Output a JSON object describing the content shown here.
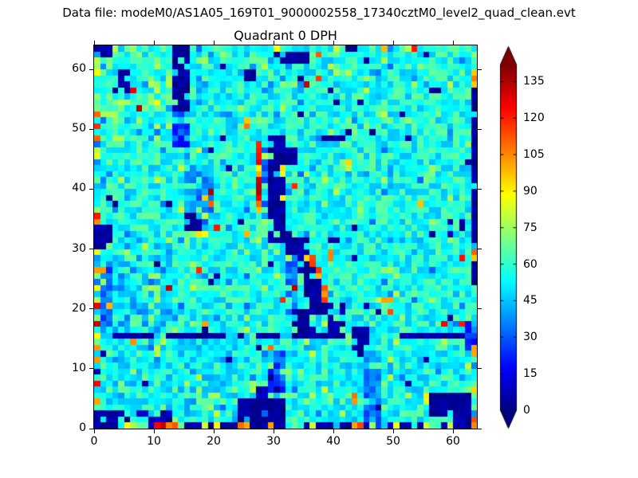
{
  "figure": {
    "background": "#ffffff"
  },
  "header": {
    "text": "Data file: modeM0/AS1A05_169T01_9000002558_17340cztM0_level2_quad_clean.evt"
  },
  "chart_data": {
    "type": "heatmap",
    "title": "Quadrant 0 DPH",
    "grid": {
      "nx": 64,
      "ny": 64
    },
    "xlim": [
      0,
      64
    ],
    "ylim": [
      0,
      64
    ],
    "x_ticks": [
      0,
      10,
      20,
      30,
      40,
      50,
      60
    ],
    "y_ticks": [
      0,
      10,
      20,
      30,
      40,
      50,
      60
    ],
    "colormap": "jet",
    "vmin": 0,
    "vmax": 142,
    "colorbar": {
      "ticks": [
        0,
        15,
        30,
        45,
        60,
        75,
        90,
        105,
        120,
        135
      ],
      "extend": "both",
      "over_color": "#800000",
      "under_color": "#000080"
    },
    "seed": 1371,
    "background": {
      "lo": 44,
      "hi": 68
    },
    "scatter": [
      {
        "prob": 0.013,
        "v": [
          0,
          7
        ]
      },
      {
        "prob": 0.009,
        "v": [
          80,
          138
        ]
      },
      {
        "prob": 0.05,
        "v": [
          66,
          80
        ]
      },
      {
        "prob": 0.05,
        "v": [
          32,
          46
        ]
      }
    ],
    "tints": [
      {
        "x": 0,
        "y": 48,
        "w": 14,
        "h": 16,
        "v": [
          48,
          80
        ],
        "p": 0.5
      },
      {
        "x": 0,
        "y": 16,
        "w": 14,
        "h": 15,
        "v": [
          34,
          56
        ],
        "p": 0.55
      },
      {
        "x": 2,
        "y": 1,
        "w": 24,
        "h": 14,
        "v": [
          40,
          60
        ],
        "p": 0.5
      },
      {
        "x": 33,
        "y": 1,
        "w": 30,
        "h": 13,
        "v": [
          42,
          60
        ],
        "p": 0.35
      },
      {
        "x": 9,
        "y": 17,
        "w": 2,
        "h": 14,
        "v": [
          60,
          80
        ],
        "p": 0.5
      },
      {
        "x": 15,
        "y": 34,
        "w": 5,
        "h": 10,
        "v": [
          28,
          48
        ],
        "p": 0.75
      },
      {
        "x": 45,
        "y": 0,
        "w": 3,
        "h": 13,
        "v": [
          26,
          46
        ],
        "p": 0.8
      },
      {
        "x": 29,
        "y": 6,
        "w": 3,
        "h": 7,
        "v": [
          20,
          38
        ],
        "p": 0.85
      },
      {
        "x": 1,
        "y": 17,
        "w": 2,
        "h": 11,
        "v": [
          22,
          40
        ],
        "p": 0.8
      },
      {
        "x": 32,
        "y": 17,
        "w": 2,
        "h": 11,
        "v": [
          26,
          46
        ],
        "p": 0.6
      },
      {
        "x": 28,
        "y": 35,
        "w": 1,
        "h": 13,
        "v": [
          22,
          40
        ],
        "p": 0.7
      }
    ],
    "features": [
      {
        "x": 0,
        "y": 1,
        "w": 1,
        "h": 61,
        "v": [
          70,
          132
        ],
        "p": 0.42
      },
      {
        "x": 13,
        "y": 53,
        "w": 3,
        "h": 11,
        "v": [
          0,
          9
        ],
        "p": 0.8
      },
      {
        "x": 13,
        "y": 47,
        "w": 3,
        "h": 6,
        "v": [
          16,
          36
        ],
        "p": 0.7
      },
      {
        "x": 4,
        "y": 56,
        "w": 2,
        "h": 4,
        "v": [
          0,
          8
        ],
        "p": 0.8
      },
      {
        "x": 0,
        "y": 62,
        "w": 3,
        "h": 2,
        "v": [
          0,
          8
        ],
        "p": 0.9
      },
      {
        "x": 30,
        "y": 61,
        "w": 6,
        "h": 2,
        "v": [
          0,
          8
        ],
        "p": 0.9
      },
      {
        "x": 25,
        "y": 58,
        "w": 2,
        "h": 2,
        "v": [
          0,
          8
        ],
        "p": 1
      },
      {
        "x": 37,
        "y": 62,
        "w": 1,
        "h": 1,
        "v": [
          98,
          112
        ],
        "p": 1
      },
      {
        "x": 30,
        "y": 63,
        "w": 1,
        "h": 1,
        "v": [
          80,
          92
        ],
        "p": 1
      },
      {
        "x": 40,
        "y": 63,
        "w": 1,
        "h": 1,
        "v": [
          80,
          92
        ],
        "p": 1
      },
      {
        "x": 48,
        "y": 63,
        "w": 1,
        "h": 1,
        "v": [
          95,
          110
        ],
        "p": 1
      },
      {
        "x": 42,
        "y": 63,
        "w": 2,
        "h": 1,
        "v": [
          0,
          7
        ],
        "p": 1
      },
      {
        "x": 45,
        "y": 61,
        "w": 1,
        "h": 1,
        "v": [
          0,
          6
        ],
        "p": 1
      },
      {
        "x": 44,
        "y": 54,
        "w": 1,
        "h": 1,
        "v": [
          0,
          6
        ],
        "p": 1
      },
      {
        "x": 51,
        "y": 52,
        "w": 1,
        "h": 1,
        "v": [
          0,
          6
        ],
        "p": 1
      },
      {
        "x": 56,
        "y": 56,
        "w": 2,
        "h": 1,
        "v": [
          0,
          6
        ],
        "p": 1
      },
      {
        "x": 34,
        "y": 52,
        "w": 1,
        "h": 1,
        "v": [
          0,
          6
        ],
        "p": 1
      },
      {
        "x": 38,
        "y": 48,
        "w": 4,
        "h": 1,
        "v": [
          0,
          8
        ],
        "p": 1
      },
      {
        "x": 29,
        "y": 35,
        "w": 3,
        "h": 14,
        "v": [
          0,
          9
        ],
        "p": 0.93
      },
      {
        "x": 32,
        "y": 44,
        "w": 2,
        "h": 3,
        "v": [
          0,
          9
        ],
        "p": 0.9
      },
      {
        "x": 27,
        "y": 36,
        "w": 1,
        "h": 12,
        "v": [
          85,
          138
        ],
        "p": 0.85
      },
      {
        "x": 31,
        "y": 42,
        "w": 1,
        "h": 2,
        "v": [
          85,
          108
        ],
        "p": 1
      },
      {
        "x": 31,
        "y": 38,
        "w": 1,
        "h": 1,
        "v": [
          80,
          95
        ],
        "p": 1
      },
      {
        "x": 29,
        "y": 31,
        "w": 4,
        "h": 4,
        "v": [
          0,
          8
        ],
        "p": 0.85
      },
      {
        "x": 0,
        "y": 30,
        "w": 3,
        "h": 4,
        "v": [
          0,
          8
        ],
        "p": 0.9
      },
      {
        "x": 15,
        "y": 33,
        "w": 3,
        "h": 3,
        "v": [
          0,
          10
        ],
        "p": 0.7
      },
      {
        "x": 17,
        "y": 32,
        "w": 2,
        "h": 1,
        "v": [
          78,
          95
        ],
        "p": 1
      },
      {
        "x": 25,
        "y": 32,
        "w": 1,
        "h": 1,
        "v": [
          95,
          110
        ],
        "p": 1
      },
      {
        "x": 3,
        "y": 15,
        "w": 8,
        "h": 1,
        "v": [
          0,
          8
        ],
        "p": 0.85
      },
      {
        "x": 12,
        "y": 15,
        "w": 11,
        "h": 1,
        "v": [
          0,
          8
        ],
        "p": 0.85
      },
      {
        "x": 24,
        "y": 15,
        "w": 7,
        "h": 1,
        "v": [
          0,
          8
        ],
        "p": 0.8
      },
      {
        "x": 33,
        "y": 15,
        "w": 9,
        "h": 2,
        "v": [
          0,
          8
        ],
        "p": 0.75
      },
      {
        "x": 43,
        "y": 13,
        "w": 3,
        "h": 4,
        "v": [
          0,
          8
        ],
        "p": 0.85
      },
      {
        "x": 50,
        "y": 15,
        "w": 13,
        "h": 1,
        "v": [
          0,
          8
        ],
        "p": 0.8
      },
      {
        "x": 32,
        "y": 29,
        "w": 4,
        "h": 3,
        "v": [
          0,
          8
        ],
        "p": 0.9
      },
      {
        "x": 34,
        "y": 26,
        "w": 3,
        "h": 3,
        "v": [
          0,
          8
        ],
        "p": 0.85
      },
      {
        "x": 35,
        "y": 22,
        "w": 3,
        "h": 4,
        "v": [
          0,
          8
        ],
        "p": 0.85
      },
      {
        "x": 36,
        "y": 19,
        "w": 3,
        "h": 3,
        "v": [
          0,
          8
        ],
        "p": 0.8
      },
      {
        "x": 33,
        "y": 17,
        "w": 3,
        "h": 3,
        "v": [
          0,
          8
        ],
        "p": 0.85
      },
      {
        "x": 39,
        "y": 16,
        "w": 3,
        "h": 5,
        "v": [
          0,
          10
        ],
        "p": 0.55
      },
      {
        "x": 39,
        "y": 31,
        "w": 2,
        "h": 1,
        "v": [
          0,
          7
        ],
        "p": 1
      },
      {
        "x": 43,
        "y": 33,
        "w": 1,
        "h": 1,
        "v": [
          0,
          7
        ],
        "p": 1
      },
      {
        "x": 35,
        "y": 28,
        "w": 1,
        "h": 1,
        "v": [
          85,
          100
        ],
        "p": 1
      },
      {
        "x": 36,
        "y": 27,
        "w": 1,
        "h": 2,
        "v": [
          95,
          122
        ],
        "p": 1
      },
      {
        "x": 37,
        "y": 24,
        "w": 1,
        "h": 2,
        "v": [
          98,
          115
        ],
        "p": 0.9
      },
      {
        "x": 38,
        "y": 21,
        "w": 1,
        "h": 3,
        "v": [
          95,
          125
        ],
        "p": 0.8
      },
      {
        "x": 39,
        "y": 28,
        "w": 1,
        "h": 2,
        "v": [
          95,
          115
        ],
        "p": 0.8
      },
      {
        "x": 49,
        "y": 21,
        "w": 1,
        "h": 1,
        "v": [
          98,
          112
        ],
        "p": 1
      },
      {
        "x": 63,
        "y": 25,
        "w": 1,
        "h": 32,
        "v": [
          0,
          10
        ],
        "p": 0.85
      },
      {
        "x": 63,
        "y": 57,
        "w": 1,
        "h": 3,
        "v": [
          95,
          118
        ],
        "p": 1
      },
      {
        "x": 62,
        "y": 13,
        "w": 2,
        "h": 5,
        "v": [
          14,
          34
        ],
        "p": 0.7
      },
      {
        "x": 63,
        "y": 12,
        "w": 1,
        "h": 2,
        "v": [
          95,
          112
        ],
        "p": 1
      },
      {
        "x": 59,
        "y": 32,
        "w": 3,
        "h": 3,
        "v": [
          0,
          9
        ],
        "p": 0.85
      },
      {
        "x": 63,
        "y": 28,
        "w": 1,
        "h": 2,
        "v": [
          95,
          115
        ],
        "p": 1
      },
      {
        "x": 0,
        "y": 0,
        "w": 64,
        "h": 1,
        "v": [
          0,
          9
        ],
        "p": 0.72
      },
      {
        "x": 0,
        "y": 0,
        "w": 4,
        "h": 3,
        "v": [
          0,
          8
        ],
        "p": 0.85
      },
      {
        "x": 3,
        "y": 1,
        "w": 10,
        "h": 2,
        "v": [
          0,
          12
        ],
        "p": 0.3
      },
      {
        "x": 24,
        "y": 0,
        "w": 8,
        "h": 5,
        "v": [
          0,
          8
        ],
        "p": 0.95
      },
      {
        "x": 26,
        "y": 5,
        "w": 5,
        "h": 2,
        "v": [
          0,
          12
        ],
        "p": 0.6
      },
      {
        "x": 28,
        "y": 2,
        "w": 1,
        "h": 1,
        "v": [
          28,
          36
        ],
        "p": 1
      },
      {
        "x": 56,
        "y": 2,
        "w": 7,
        "h": 4,
        "v": [
          0,
          7
        ],
        "p": 0.95
      },
      {
        "x": 60,
        "y": 1,
        "w": 3,
        "h": 2,
        "v": [
          0,
          8
        ],
        "p": 0.9
      },
      {
        "x": 55,
        "y": 4,
        "w": 1,
        "h": 2,
        "v": [
          80,
          95
        ],
        "p": 1
      },
      {
        "x": 63,
        "y": 6,
        "w": 1,
        "h": 1,
        "v": [
          80,
          95
        ],
        "p": 1
      },
      {
        "x": 63,
        "y": 0,
        "w": 1,
        "h": 2,
        "v": [
          105,
          138
        ],
        "p": 1
      },
      {
        "x": 43,
        "y": 4,
        "w": 1,
        "h": 2,
        "v": [
          95,
          110
        ],
        "p": 1
      },
      {
        "x": 0,
        "y": 4,
        "w": 1,
        "h": 1,
        "v": [
          98,
          110
        ],
        "p": 1
      },
      {
        "x": 5,
        "y": 0,
        "w": 1,
        "h": 1,
        "v": [
          80,
          92
        ],
        "p": 1
      },
      {
        "x": 6,
        "y": 0,
        "w": 3,
        "h": 1,
        "v": [
          62,
          80
        ],
        "p": 1
      },
      {
        "x": 10,
        "y": 0,
        "w": 2,
        "h": 1,
        "v": [
          122,
          140
        ],
        "p": 1
      },
      {
        "x": 12,
        "y": 0,
        "w": 2,
        "h": 1,
        "v": [
          100,
          115
        ],
        "p": 1
      },
      {
        "x": 18,
        "y": 0,
        "w": 1,
        "h": 1,
        "v": [
          80,
          95
        ],
        "p": 1
      },
      {
        "x": 20,
        "y": 0,
        "w": 1,
        "h": 1,
        "v": [
          82,
          92
        ],
        "p": 1
      },
      {
        "x": 24,
        "y": 0,
        "w": 2,
        "h": 1,
        "v": [
          100,
          115
        ],
        "p": 1
      },
      {
        "x": 29,
        "y": 0,
        "w": 1,
        "h": 1,
        "v": [
          100,
          112
        ],
        "p": 1
      },
      {
        "x": 36,
        "y": 0,
        "w": 1,
        "h": 1,
        "v": [
          80,
          92
        ],
        "p": 1
      },
      {
        "x": 43,
        "y": 0,
        "w": 2,
        "h": 1,
        "v": [
          100,
          120
        ],
        "p": 1
      },
      {
        "x": 50,
        "y": 0,
        "w": 1,
        "h": 1,
        "v": [
          80,
          90
        ],
        "p": 1
      },
      {
        "x": 55,
        "y": 0,
        "w": 1,
        "h": 1,
        "v": [
          80,
          90
        ],
        "p": 1
      },
      {
        "x": 59,
        "y": 0,
        "w": 1,
        "h": 1,
        "v": [
          80,
          90
        ],
        "p": 1
      }
    ]
  }
}
